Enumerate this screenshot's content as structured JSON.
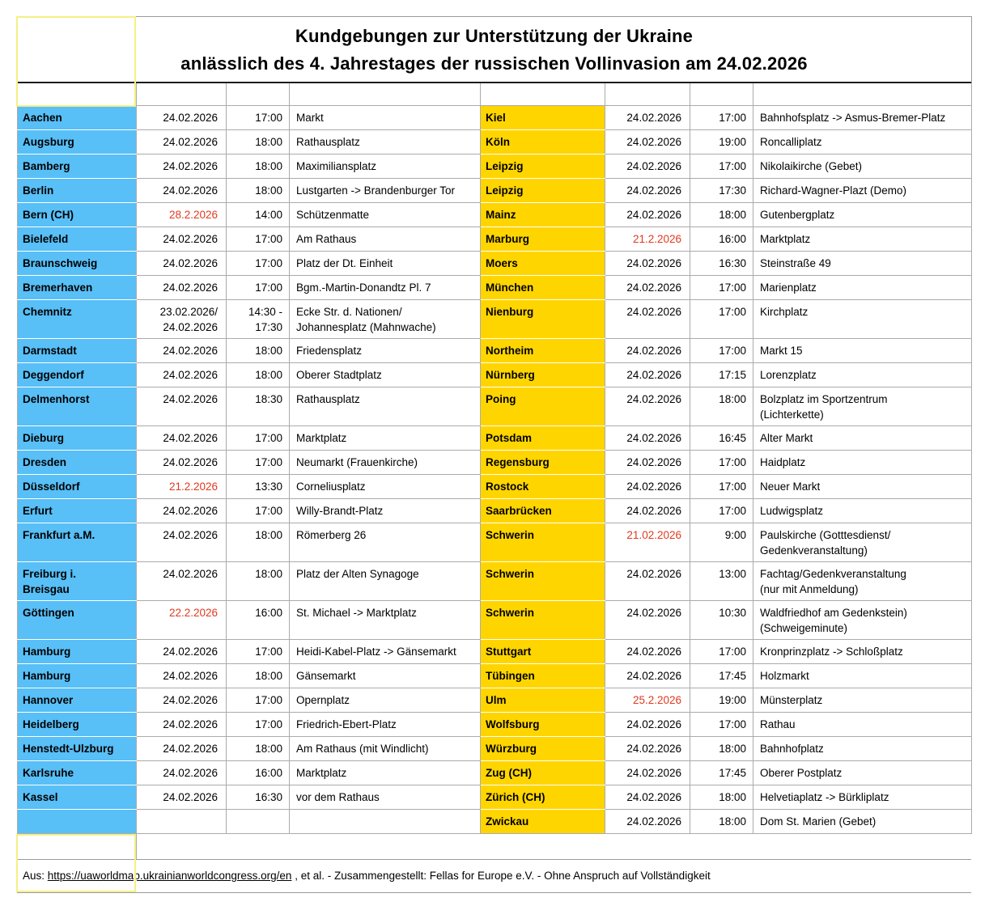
{
  "title": {
    "line1": "Kundgebungen zur Unterstützung der Ukraine",
    "line2": "anlässlich des 4. Jahrestages der russischen Vollinvasion am 24.02.2026"
  },
  "table": {
    "rows": [
      {
        "tall": false,
        "left": {
          "city": "Aachen",
          "date": "24.02.2026",
          "date_red": false,
          "time": "17:00",
          "location": "Markt"
        },
        "right": {
          "city": "Kiel",
          "date": "24.02.2026",
          "date_red": false,
          "time": "17:00",
          "location": "Bahnhofsplatz -> Asmus-Bremer-Platz"
        }
      },
      {
        "tall": false,
        "left": {
          "city": "Augsburg",
          "date": "24.02.2026",
          "date_red": false,
          "time": "18:00",
          "location": "Rathausplatz"
        },
        "right": {
          "city": "Köln",
          "date": "24.02.2026",
          "date_red": false,
          "time": "19:00",
          "location": "Roncalliplatz"
        }
      },
      {
        "tall": false,
        "left": {
          "city": "Bamberg",
          "date": "24.02.2026",
          "date_red": false,
          "time": "18:00",
          "location": "Maximiliansplatz"
        },
        "right": {
          "city": "Leipzig",
          "date": "24.02.2026",
          "date_red": false,
          "time": "17:00",
          "location": "Nikolaikirche (Gebet)"
        }
      },
      {
        "tall": false,
        "left": {
          "city": "Berlin",
          "date": "24.02.2026",
          "date_red": false,
          "time": "18:00",
          "location": "Lustgarten -> Brandenburger Tor"
        },
        "right": {
          "city": "Leipzig",
          "date": "24.02.2026",
          "date_red": false,
          "time": "17:30",
          "location": "Richard-Wagner-Plazt (Demo)"
        }
      },
      {
        "tall": false,
        "left": {
          "city": "Bern (CH)",
          "date": "28.2.2026",
          "date_red": true,
          "time": "14:00",
          "location": "Schützenmatte"
        },
        "right": {
          "city": "Mainz",
          "date": "24.02.2026",
          "date_red": false,
          "time": "18:00",
          "location": "Gutenbergplatz"
        }
      },
      {
        "tall": false,
        "left": {
          "city": "Bielefeld",
          "date": "24.02.2026",
          "date_red": false,
          "time": "17:00",
          "location": "Am Rathaus"
        },
        "right": {
          "city": "Marburg",
          "date": "21.2.2026",
          "date_red": true,
          "time": "16:00",
          "location": "Marktplatz"
        }
      },
      {
        "tall": false,
        "left": {
          "city": "Braunschweig",
          "date": "24.02.2026",
          "date_red": false,
          "time": "17:00",
          "location": "Platz der Dt. Einheit"
        },
        "right": {
          "city": "Moers",
          "date": "24.02.2026",
          "date_red": false,
          "time": "16:30",
          "location": "Steinstraße 49"
        }
      },
      {
        "tall": false,
        "left": {
          "city": "Bremerhaven",
          "date": "24.02.2026",
          "date_red": false,
          "time": "17:00",
          "location": "Bgm.-Martin-Donandtz Pl. 7"
        },
        "right": {
          "city": "München",
          "date": "24.02.2026",
          "date_red": false,
          "time": "17:00",
          "location": "Marienplatz"
        }
      },
      {
        "tall": true,
        "left": {
          "city": "Chemnitz",
          "date": "23.02.2026/\n24.02.2026",
          "date_red": false,
          "time": "14:30 -\n17:30",
          "location": "Ecke Str. d. Nationen/\nJohannesplatz (Mahnwache)"
        },
        "right": {
          "city": "Nienburg",
          "date": "24.02.2026",
          "date_red": false,
          "time": "17:00",
          "location": "Kirchplatz"
        }
      },
      {
        "tall": false,
        "left": {
          "city": "Darmstadt",
          "date": "24.02.2026",
          "date_red": false,
          "time": "18:00",
          "location": "Friedensplatz"
        },
        "right": {
          "city": "Northeim",
          "date": "24.02.2026",
          "date_red": false,
          "time": "17:00",
          "location": "Markt 15"
        }
      },
      {
        "tall": false,
        "left": {
          "city": "Deggendorf",
          "date": "24.02.2026",
          "date_red": false,
          "time": "18:00",
          "location": "Oberer Stadtplatz"
        },
        "right": {
          "city": "Nürnberg",
          "date": "24.02.2026",
          "date_red": false,
          "time": "17:15",
          "location": "Lorenzplatz"
        }
      },
      {
        "tall": true,
        "left": {
          "city": "Delmenhorst",
          "date": "24.02.2026",
          "date_red": false,
          "time": "18:30",
          "location": "Rathausplatz"
        },
        "right": {
          "city": "Poing",
          "date": "24.02.2026",
          "date_red": false,
          "time": "18:00",
          "location": "Bolzplatz im Sportzentrum\n(Lichterkette)"
        }
      },
      {
        "tall": false,
        "left": {
          "city": "Dieburg",
          "date": "24.02.2026",
          "date_red": false,
          "time": "17:00",
          "location": "Marktplatz"
        },
        "right": {
          "city": "Potsdam",
          "date": "24.02.2026",
          "date_red": false,
          "time": "16:45",
          "location": "Alter Markt"
        }
      },
      {
        "tall": false,
        "left": {
          "city": "Dresden",
          "date": "24.02.2026",
          "date_red": false,
          "time": "17:00",
          "location": "Neumarkt (Frauenkirche)"
        },
        "right": {
          "city": "Regensburg",
          "date": "24.02.2026",
          "date_red": false,
          "time": "17:00",
          "location": "Haidplatz"
        }
      },
      {
        "tall": false,
        "left": {
          "city": "Düsseldorf",
          "date": "21.2.2026",
          "date_red": true,
          "time": "13:30",
          "location": "Corneliusplatz"
        },
        "right": {
          "city": "Rostock",
          "date": "24.02.2026",
          "date_red": false,
          "time": "17:00",
          "location": "Neuer Markt"
        }
      },
      {
        "tall": false,
        "left": {
          "city": "Erfurt",
          "date": "24.02.2026",
          "date_red": false,
          "time": "17:00",
          "location": "Willy-Brandt-Platz"
        },
        "right": {
          "city": "Saarbrücken",
          "date": "24.02.2026",
          "date_red": false,
          "time": "17:00",
          "location": "Ludwigsplatz"
        }
      },
      {
        "tall": true,
        "left": {
          "city": "Frankfurt a.M.",
          "date": "24.02.2026",
          "date_red": false,
          "time": "18:00",
          "location": "Römerberg 26"
        },
        "right": {
          "city": "Schwerin",
          "date": "21.02.2026",
          "date_red": true,
          "time": "9:00",
          "location": "Paulskirche (Gotttesdienst/\nGedenkveranstaltung)"
        }
      },
      {
        "tall": true,
        "left": {
          "city": "Freiburg i.\nBreisgau",
          "date": "24.02.2026",
          "date_red": false,
          "time": "18:00",
          "location": "Platz der Alten Synagoge"
        },
        "right": {
          "city": "Schwerin",
          "date": "24.02.2026",
          "date_red": false,
          "time": "13:00",
          "location": "Fachtag/Gedenkveranstaltung\n(nur mit Anmeldung)"
        }
      },
      {
        "tall": true,
        "left": {
          "city": "Göttingen",
          "date": "22.2.2026",
          "date_red": true,
          "time": "16:00",
          "location": "St. Michael -> Marktplatz"
        },
        "right": {
          "city": "Schwerin",
          "date": "24.02.2026",
          "date_red": false,
          "time": "10:30",
          "location": "Waldfriedhof am Gedenkstein)\n(Schweigeminute)"
        }
      },
      {
        "tall": false,
        "left": {
          "city": "Hamburg",
          "date": "24.02.2026",
          "date_red": false,
          "time": "17:00",
          "location": "Heidi-Kabel-Platz -> Gänsemarkt"
        },
        "right": {
          "city": "Stuttgart",
          "date": "24.02.2026",
          "date_red": false,
          "time": "17:00",
          "location": "Kronprinzplatz -> Schloßplatz"
        }
      },
      {
        "tall": false,
        "left": {
          "city": "Hamburg",
          "date": "24.02.2026",
          "date_red": false,
          "time": "18:00",
          "location": "Gänsemarkt"
        },
        "right": {
          "city": "Tübingen",
          "date": "24.02.2026",
          "date_red": false,
          "time": "17:45",
          "location": "Holzmarkt"
        }
      },
      {
        "tall": false,
        "left": {
          "city": "Hannover",
          "date": "24.02.2026",
          "date_red": false,
          "time": "17:00",
          "location": "Opernplatz"
        },
        "right": {
          "city": "Ulm",
          "date": "25.2.2026",
          "date_red": true,
          "time": "19:00",
          "location": "Münsterplatz"
        }
      },
      {
        "tall": false,
        "left": {
          "city": "Heidelberg",
          "date": "24.02.2026",
          "date_red": false,
          "time": "17:00",
          "location": "Friedrich-Ebert-Platz"
        },
        "right": {
          "city": "Wolfsburg",
          "date": "24.02.2026",
          "date_red": false,
          "time": "17:00",
          "location": "Rathau"
        }
      },
      {
        "tall": false,
        "left": {
          "city": "Henstedt-Ulzburg",
          "date": "24.02.2026",
          "date_red": false,
          "time": "18:00",
          "location": "Am Rathaus (mit Windlicht)"
        },
        "right": {
          "city": "Würzburg",
          "date": "24.02.2026",
          "date_red": false,
          "time": "18:00",
          "location": "Bahnhofplatz"
        }
      },
      {
        "tall": false,
        "left": {
          "city": "Karlsruhe",
          "date": "24.02.2026",
          "date_red": false,
          "time": "16:00",
          "location": "Marktplatz"
        },
        "right": {
          "city": "Zug (CH)",
          "date": "24.02.2026",
          "date_red": false,
          "time": "17:45",
          "location": "Oberer Postplatz"
        }
      },
      {
        "tall": false,
        "left": {
          "city": "Kassel",
          "date": "24.02.2026",
          "date_red": false,
          "time": "16:30",
          "location": "vor dem Rathaus"
        },
        "right": {
          "city": "Zürich (CH)",
          "date": "24.02.2026",
          "date_red": false,
          "time": "18:00",
          "location": "Helvetiaplatz -> Bürkliplatz"
        }
      },
      {
        "tall": false,
        "left": {
          "city": "",
          "date": "",
          "date_red": false,
          "time": "",
          "location": ""
        },
        "right": {
          "city": "Zwickau",
          "date": "24.02.2026",
          "date_red": false,
          "time": "18:00",
          "location": "Dom St. Marien (Gebet)"
        }
      }
    ]
  },
  "footer": {
    "prefix": "Aus: ",
    "link": "https://uaworldmap.ukrainianworldcongress.org/en",
    "suffix": " , et al. - Zusammengestellt: Fellas for Europe e.V. - Ohne Anspruch auf Vollständigkeit"
  },
  "colors": {
    "city-blue": "#58bff7",
    "city-yellow": "#ffd500",
    "date-red": "#e0391f",
    "accent-border": "#f4f086"
  }
}
